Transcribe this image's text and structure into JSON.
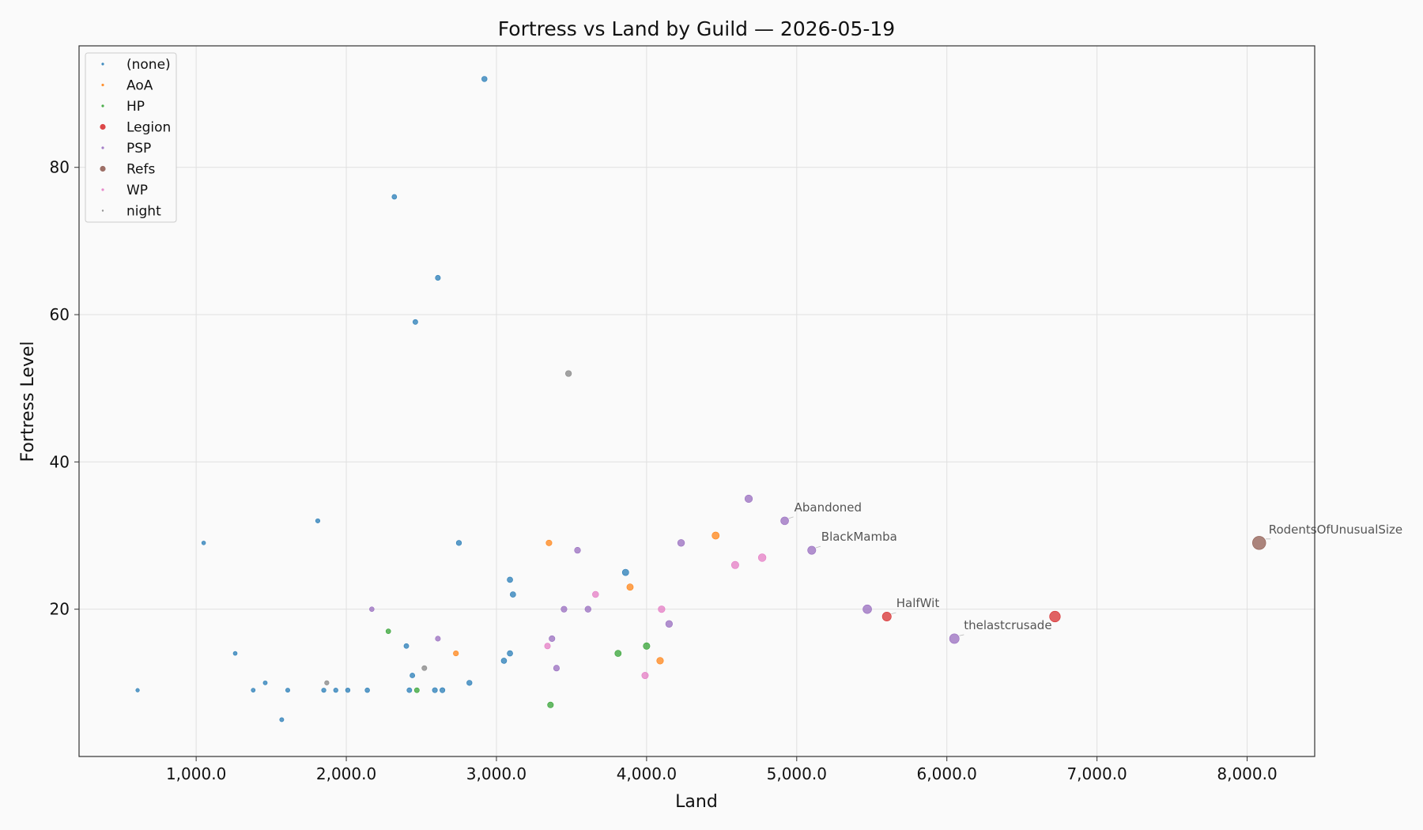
{
  "chart_data": {
    "type": "scatter",
    "title": "Fortress vs Land by Guild — 2026-05-19",
    "xlabel": "Land",
    "ylabel": "Fortress Level",
    "xlim": [
      220,
      8450
    ],
    "ylim": [
      0,
      96.5
    ],
    "xticks": [
      1000,
      2000,
      3000,
      4000,
      5000,
      6000,
      7000,
      8000
    ],
    "xtick_labels": [
      "1,000.0",
      "2,000.0",
      "3,000.0",
      "4,000.0",
      "5,000.0",
      "6,000.0",
      "7,000.0",
      "8,000.0"
    ],
    "yticks": [
      20,
      40,
      60,
      80
    ],
    "ytick_labels": [
      "20",
      "40",
      "60",
      "80"
    ],
    "grid": true,
    "legend_position": "top-left",
    "colors": {
      "(none)": "#1f77b4",
      "AoA": "#ff7f0e",
      "HP": "#2ca02c",
      "Legion": "#d62728",
      "PSP": "#9467bd",
      "Refs": "#8c564b",
      "WP": "#e377c2",
      "night": "#7f7f7f"
    },
    "series": [
      {
        "name": "(none)",
        "points": [
          {
            "x": 610,
            "y": 9
          },
          {
            "x": 1050,
            "y": 29
          },
          {
            "x": 1260,
            "y": 14
          },
          {
            "x": 1380,
            "y": 9
          },
          {
            "x": 1460,
            "y": 10
          },
          {
            "x": 1570,
            "y": 5
          },
          {
            "x": 1610,
            "y": 9
          },
          {
            "x": 1810,
            "y": 32
          },
          {
            "x": 1850,
            "y": 9
          },
          {
            "x": 1930,
            "y": 9
          },
          {
            "x": 2010,
            "y": 9
          },
          {
            "x": 2140,
            "y": 9
          },
          {
            "x": 2320,
            "y": 76
          },
          {
            "x": 2400,
            "y": 15
          },
          {
            "x": 2420,
            "y": 9
          },
          {
            "x": 2440,
            "y": 11
          },
          {
            "x": 2460,
            "y": 59
          },
          {
            "x": 2590,
            "y": 9
          },
          {
            "x": 2610,
            "y": 65
          },
          {
            "x": 2640,
            "y": 9
          },
          {
            "x": 2750,
            "y": 29
          },
          {
            "x": 2820,
            "y": 10
          },
          {
            "x": 2920,
            "y": 92
          },
          {
            "x": 3050,
            "y": 13
          },
          {
            "x": 3090,
            "y": 24
          },
          {
            "x": 3090,
            "y": 14
          },
          {
            "x": 3110,
            "y": 22
          },
          {
            "x": 3860,
            "y": 25
          }
        ]
      },
      {
        "name": "AoA",
        "points": [
          {
            "x": 2730,
            "y": 14
          },
          {
            "x": 3350,
            "y": 29
          },
          {
            "x": 3890,
            "y": 23
          },
          {
            "x": 4090,
            "y": 13
          },
          {
            "x": 4460,
            "y": 30
          }
        ]
      },
      {
        "name": "HP",
        "points": [
          {
            "x": 2280,
            "y": 17
          },
          {
            "x": 2470,
            "y": 9
          },
          {
            "x": 3360,
            "y": 7
          },
          {
            "x": 3810,
            "y": 14
          },
          {
            "x": 4000,
            "y": 15
          }
        ]
      },
      {
        "name": "Legion",
        "points": [
          {
            "x": 5600,
            "y": 19,
            "label": "HalfWit"
          },
          {
            "x": 6720,
            "y": 19
          }
        ]
      },
      {
        "name": "PSP",
        "points": [
          {
            "x": 2170,
            "y": 20
          },
          {
            "x": 2610,
            "y": 16
          },
          {
            "x": 3370,
            "y": 16
          },
          {
            "x": 3400,
            "y": 12
          },
          {
            "x": 3450,
            "y": 20
          },
          {
            "x": 3540,
            "y": 28
          },
          {
            "x": 3610,
            "y": 20
          },
          {
            "x": 4150,
            "y": 18
          },
          {
            "x": 4230,
            "y": 29
          },
          {
            "x": 4680,
            "y": 35
          },
          {
            "x": 4920,
            "y": 32,
            "label": "Abandoned"
          },
          {
            "x": 5100,
            "y": 28,
            "label": "BlackMamba"
          },
          {
            "x": 5470,
            "y": 20
          },
          {
            "x": 6050,
            "y": 16,
            "label": "thelastcrusade"
          }
        ]
      },
      {
        "name": "Refs",
        "points": [
          {
            "x": 8080,
            "y": 29,
            "label": "RodentsOfUnusualSize"
          }
        ]
      },
      {
        "name": "WP",
        "points": [
          {
            "x": 3340,
            "y": 15
          },
          {
            "x": 3660,
            "y": 22
          },
          {
            "x": 3990,
            "y": 11
          },
          {
            "x": 4100,
            "y": 20
          },
          {
            "x": 4590,
            "y": 26
          },
          {
            "x": 4770,
            "y": 27
          }
        ]
      },
      {
        "name": "night",
        "points": [
          {
            "x": 1870,
            "y": 10
          },
          {
            "x": 2520,
            "y": 12
          },
          {
            "x": 3480,
            "y": 52
          }
        ]
      }
    ]
  }
}
